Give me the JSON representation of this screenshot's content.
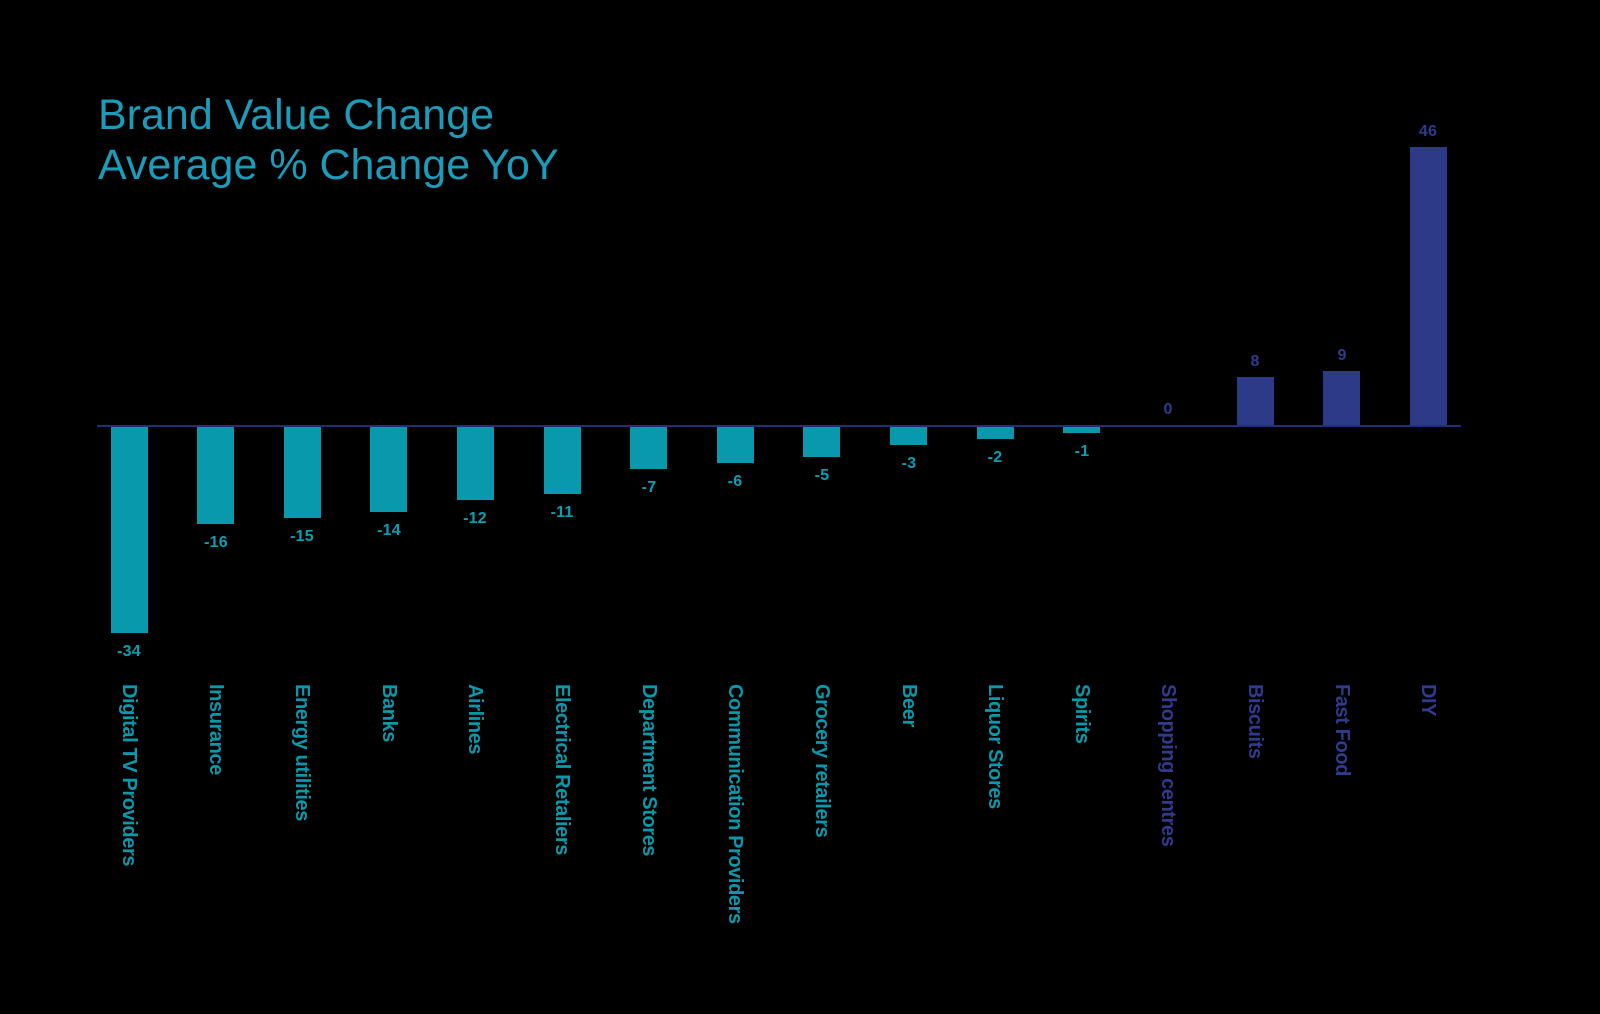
{
  "title": {
    "line1": "Brand Value Change",
    "line2": "Average % Change YoY"
  },
  "chart_data": {
    "type": "bar",
    "title": "Brand Value Change",
    "subtitle": "Average % Change YoY",
    "orientation": "vertical",
    "categories": [
      "Digital TV Providers",
      "Insurance",
      "Energy utilities",
      "Banks",
      "Airlines",
      "Electrical Retaliers",
      "Department Stores",
      "Communication Providers",
      "Grocery retailers",
      "Beer",
      "Liquor Stores",
      "Spirits",
      "Shopping centres",
      "Biscuits",
      "Fast Food",
      "DIY"
    ],
    "values": [
      -34,
      -16,
      -15,
      -14,
      -12,
      -11,
      -7,
      -6,
      -5,
      -3,
      -2,
      -1,
      0,
      8,
      9,
      46
    ],
    "value_labels": [
      "-34",
      "-16",
      "-15",
      "-14",
      "-12",
      "-11",
      "-7",
      "-6",
      "-5",
      "-3",
      "-2",
      "-1",
      "0",
      "8",
      "9",
      "46"
    ],
    "ylim": [
      -40,
      50
    ],
    "grid": false,
    "legend": "none",
    "value_label_position": "outside bar end",
    "category_label_rotation_deg": 90,
    "colors": {
      "background": "#000000",
      "title": "#1a9cba",
      "bar_negative": "#0899ac",
      "bar_positive": "#2d3a87",
      "value_label_negative": "#09a0b4",
      "value_label_positive": "#2e3b8f",
      "category_label_negative": "#0899ac",
      "category_label_positive": "#2e3b8f",
      "axis": "#212e7a"
    }
  }
}
